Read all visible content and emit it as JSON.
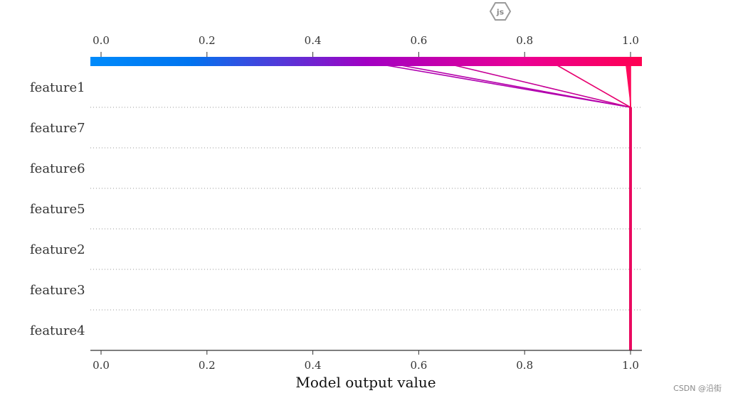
{
  "badge": {
    "icon": "js-hexagon-icon",
    "label": "js"
  },
  "watermark": "CSDN @沿街",
  "chart_data": {
    "type": "line",
    "xlabel": "Model output value",
    "xlim": [
      0.0,
      1.0
    ],
    "ticks": [
      0.0,
      0.2,
      0.4,
      0.6,
      0.8,
      1.0
    ],
    "tick_labels": [
      "0.0",
      "0.2",
      "0.4",
      "0.6",
      "0.8",
      "1.0"
    ],
    "features": [
      "feature1",
      "feature7",
      "feature6",
      "feature5",
      "feature2",
      "feature3",
      "feature4"
    ],
    "colors": {
      "low": "#008bfb",
      "mid": "#b000b0",
      "high": "#ff0052"
    },
    "lines": [
      {
        "start": 0.5,
        "feature1": 1.0,
        "rest": 1.0
      },
      {
        "start": 0.53,
        "feature1": 1.0,
        "rest": 1.0
      },
      {
        "start": 0.64,
        "feature1": 1.0,
        "rest": 1.0
      },
      {
        "start": 0.85,
        "feature1": 1.0,
        "rest": 1.0
      },
      {
        "start": 0.996,
        "feature1": 1.0,
        "rest": 1.0
      },
      {
        "start": 0.998,
        "feature1": 1.0,
        "rest": 1.0
      },
      {
        "start": 1.0,
        "feature1": 1.0,
        "rest": 1.0
      }
    ]
  }
}
